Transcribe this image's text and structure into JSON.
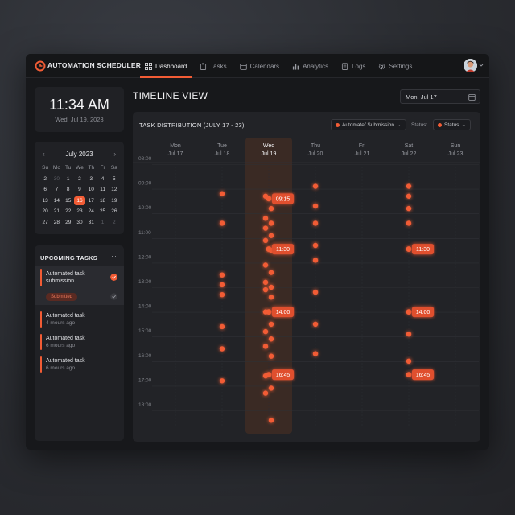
{
  "app": {
    "title": "AUTOMATION SCHEDULER"
  },
  "colors": {
    "accent": "#f25c35",
    "window_bg": "#17181b",
    "card_bg": "#202125"
  },
  "nav": {
    "items": [
      {
        "label": "Dashboard",
        "icon": "grid-icon",
        "active": true
      },
      {
        "label": "Tasks",
        "icon": "clipboard-icon",
        "active": false
      },
      {
        "label": "Calendars",
        "icon": "calendar-icon",
        "active": false
      },
      {
        "label": "Analytics",
        "icon": "bar-chart-icon",
        "active": false
      },
      {
        "label": "Logs",
        "icon": "document-icon",
        "active": false
      },
      {
        "label": "Settings",
        "icon": "gear-icon",
        "active": false
      }
    ]
  },
  "clock": {
    "time": "11:34 AM",
    "date": "Wed, Jul 19, 2023"
  },
  "mini_calendar": {
    "month": "July 2023",
    "weekdays": [
      "Su",
      "Mo",
      "Tu",
      "We",
      "Th",
      "Fr",
      "Sa"
    ],
    "days": [
      {
        "d": "2"
      },
      {
        "d": "30",
        "muted": true
      },
      {
        "d": "1"
      },
      {
        "d": "2"
      },
      {
        "d": "3"
      },
      {
        "d": "4"
      },
      {
        "d": "5"
      },
      {
        "d": "6"
      },
      {
        "d": "7"
      },
      {
        "d": "8"
      },
      {
        "d": "9"
      },
      {
        "d": "10"
      },
      {
        "d": "11"
      },
      {
        "d": "12"
      },
      {
        "d": "13"
      },
      {
        "d": "14"
      },
      {
        "d": "15"
      },
      {
        "d": "16",
        "selected": true
      },
      {
        "d": "17"
      },
      {
        "d": "18"
      },
      {
        "d": "19"
      },
      {
        "d": "20"
      },
      {
        "d": "21"
      },
      {
        "d": "22"
      },
      {
        "d": "23"
      },
      {
        "d": "24"
      },
      {
        "d": "25"
      },
      {
        "d": "26"
      },
      {
        "d": "27"
      },
      {
        "d": "28"
      },
      {
        "d": "29"
      },
      {
        "d": "30"
      },
      {
        "d": "31"
      },
      {
        "d": "1",
        "muted": true
      },
      {
        "d": "2",
        "muted": true
      }
    ]
  },
  "upcoming": {
    "title": "UPCOMING TASKS",
    "more": "···",
    "tasks": [
      {
        "name": "Automated task submission",
        "status": "Submitted"
      },
      {
        "name": "Automated task",
        "sub": "4 mours ago"
      },
      {
        "name": "Automated task",
        "sub": "6 mours ago"
      },
      {
        "name": "Automated task",
        "sub": "6 mours ago"
      }
    ]
  },
  "main": {
    "title": "TIMELINE VIEW",
    "date_picker": "Mon, Jul 17"
  },
  "panel": {
    "title": "TASK DISTRIBUTION (JULY 17 - 23)",
    "filter_type": "Automatef Submission",
    "status_label": "Status:",
    "status_filter": "Status"
  },
  "chart_data": {
    "type": "scatter",
    "days": [
      {
        "dow": "Mon",
        "date": "Jul 17"
      },
      {
        "dow": "Tue",
        "date": "Jul 18"
      },
      {
        "dow": "Wed",
        "date": "Jul 19",
        "highlight": true
      },
      {
        "dow": "Thu",
        "date": "Jul 20"
      },
      {
        "dow": "Fri",
        "date": "Jul 21"
      },
      {
        "dow": "Sat",
        "date": "Jul 22"
      },
      {
        "dow": "Sun",
        "date": "Jul 23"
      }
    ],
    "hour_labels": [
      "08:00",
      "09:00",
      "10:00",
      "11:00",
      "12:00",
      "13:00",
      "14:00",
      "15:00",
      "16:00",
      "17:00",
      "18:00"
    ],
    "y_range": [
      8,
      18.5
    ],
    "points": [
      {
        "day": 1,
        "t": [
          9.2,
          10.4,
          12.5,
          12.9,
          13.3,
          14.6,
          15.5,
          16.8
        ]
      },
      {
        "day": 2,
        "t": [
          9.3,
          9.8,
          10.2,
          10.4,
          10.6,
          10.9,
          11.1,
          11.5,
          12.1,
          12.4,
          12.8,
          13.0,
          13.1,
          13.4,
          14.0,
          14.5,
          14.8,
          15.1,
          15.4,
          15.8,
          16.6,
          17.1,
          17.3,
          18.4
        ]
      },
      {
        "day": 3,
        "t": [
          8.9,
          9.7,
          10.4,
          11.3,
          11.9,
          13.2,
          14.5,
          15.7
        ]
      },
      {
        "day": 5,
        "t": [
          8.9,
          9.3,
          9.8,
          10.4,
          14.9,
          16.0
        ]
      }
    ],
    "callouts": [
      {
        "day": 2,
        "t": 9.4,
        "label": "09:15"
      },
      {
        "day": 2,
        "t": 11.45,
        "label": "11:30"
      },
      {
        "day": 2,
        "t": 14.0,
        "label": "14:00"
      },
      {
        "day": 2,
        "t": 16.55,
        "label": "16:45"
      },
      {
        "day": 5,
        "t": 11.45,
        "label": "11:30"
      },
      {
        "day": 5,
        "t": 14.0,
        "label": "14:00"
      },
      {
        "day": 5,
        "t": 16.55,
        "label": "16:45"
      }
    ]
  }
}
